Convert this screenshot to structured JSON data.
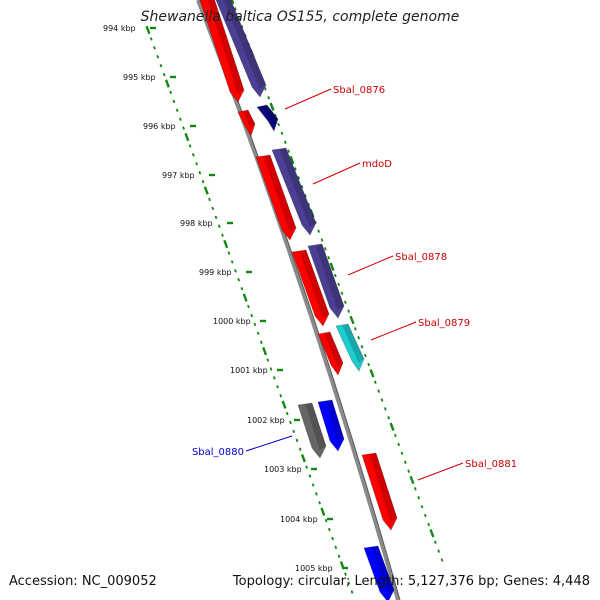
{
  "title": "Shewanella baltica OS155, complete genome",
  "footer": {
    "accession": "Accession: NC_009052",
    "summary": "Topology: circular; Length: 5,127,376 bp; Genes: 4,448"
  },
  "colors": {
    "red": "#ff0000",
    "purple": "#4b3f94",
    "navy": "#0a0a80",
    "cyan": "#1ccdd0",
    "blue": "#0000ff",
    "gray": "#666666",
    "tick": "#118811",
    "label_red": "#cc0000",
    "label_blue": "#0000cc",
    "backbone": "#8a8a8a"
  },
  "ticks": [
    {
      "label": "994 kbp"
    },
    {
      "label": "995 kbp"
    },
    {
      "label": "996 kbp"
    },
    {
      "label": "997 kbp"
    },
    {
      "label": "998 kbp"
    },
    {
      "label": "999 kbp"
    },
    {
      "label": "1000 kbp"
    },
    {
      "label": "1001 kbp"
    },
    {
      "label": "1002 kbp"
    },
    {
      "label": "1003 kbp"
    },
    {
      "label": "1004 kbp"
    },
    {
      "label": "1005 kbp"
    }
  ],
  "gene_labels": [
    {
      "text": "Sbal_0876",
      "color": "label_red"
    },
    {
      "text": "mdoD",
      "color": "label_red"
    },
    {
      "text": "Sbal_0878",
      "color": "label_red"
    },
    {
      "text": "Sbal_0879",
      "color": "label_red"
    },
    {
      "text": "Sbal_0880",
      "color": "label_blue"
    },
    {
      "text": "Sbal_0881",
      "color": "label_red"
    }
  ]
}
